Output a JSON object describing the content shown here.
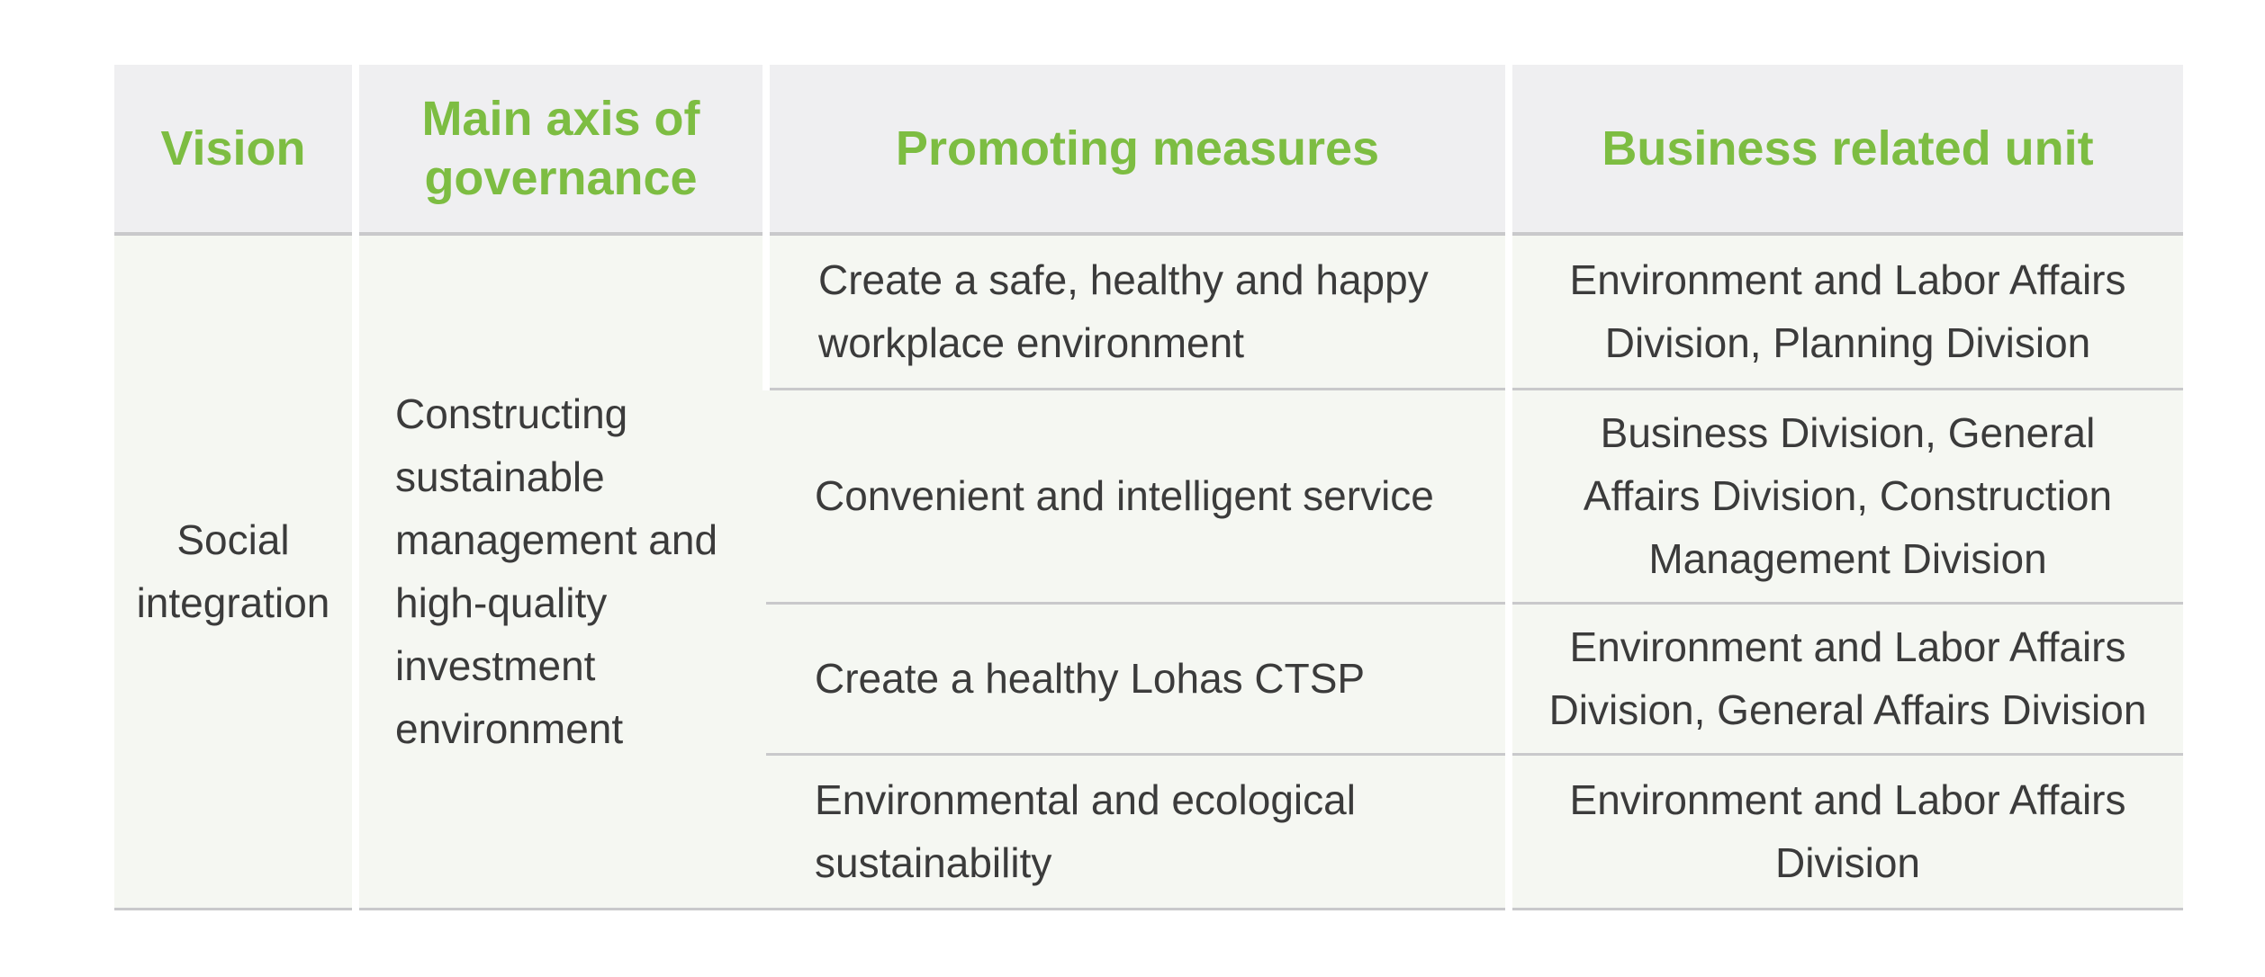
{
  "table": {
    "headers": {
      "vision": "Vision",
      "axis": "Main axis of governance",
      "measures": "Promoting measures",
      "unit": "Business related unit"
    },
    "vision": "Social integration",
    "axis": "Constructing sustainable management and high-quality investment environment",
    "rows": [
      {
        "measure": "Create a safe, healthy and happy workplace environment",
        "unit": "Environment and Labor Affairs Division, Planning Division"
      },
      {
        "measure": "Convenient and intelligent service",
        "unit": "Business Division, General Affairs Division, Construction Management Division"
      },
      {
        "measure": "Create a healthy Lohas CTSP",
        "unit": "Environment and Labor Affairs Division, General Affairs Division"
      },
      {
        "measure": "Environmental and ecological sustainability",
        "unit": "Environment and Labor Affairs Division"
      }
    ],
    "colors": {
      "header_text": "#7dbd42",
      "header_bg": "#efeff1",
      "body_bg": "#f5f7f2",
      "body_text": "#3b3b3b",
      "rule": "#c9c9cb"
    }
  }
}
